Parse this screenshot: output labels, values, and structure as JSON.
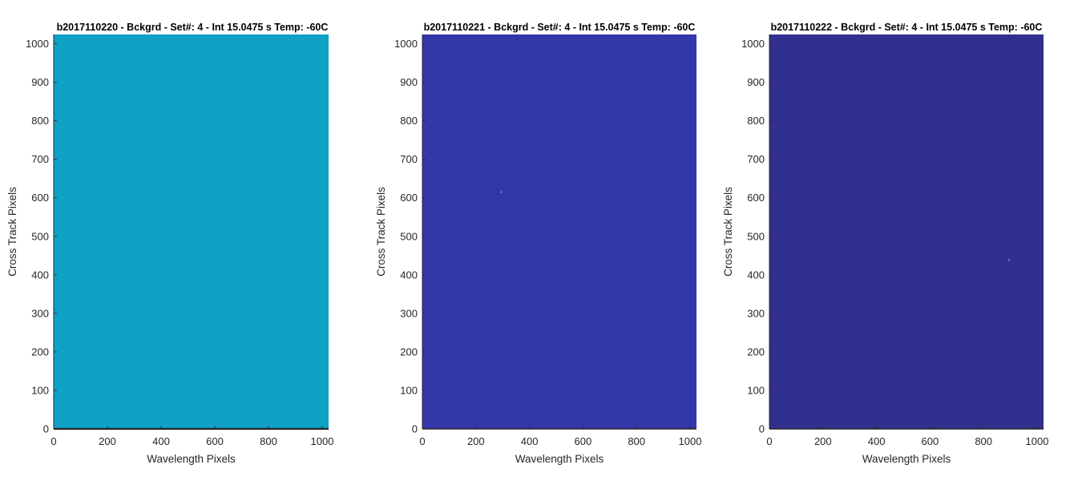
{
  "chart_data": [
    {
      "type": "heatmap",
      "title": "b2017110220 - Bckgrd - Set#: 4 - Int 15.0475 s Temp: -60C",
      "xlabel": "Wavelength Pixels",
      "ylabel": "Cross Track Pixels",
      "xlim": [
        0,
        1024
      ],
      "ylim": [
        0,
        1024
      ],
      "xticks": [
        0,
        200,
        400,
        600,
        800,
        1000
      ],
      "yticks": [
        0,
        100,
        200,
        300,
        400,
        500,
        600,
        700,
        800,
        900,
        1000
      ],
      "fill_color": "#0fa1c6",
      "grid": false
    },
    {
      "type": "heatmap",
      "title": "b2017110221 - Bckgrd - Set#: 4 - Int 15.0475 s Temp: -60C",
      "xlabel": "Wavelength Pixels",
      "ylabel": "Cross Track Pixels",
      "xlim": [
        0,
        1024
      ],
      "ylim": [
        0,
        1024
      ],
      "xticks": [
        0,
        200,
        400,
        600,
        800,
        1000
      ],
      "yticks": [
        0,
        100,
        200,
        300,
        400,
        500,
        600,
        700,
        800,
        900,
        1000
      ],
      "fill_color": "#3337a9",
      "grid": false
    },
    {
      "type": "heatmap",
      "title": "b2017110222 - Bckgrd - Set#: 4 - Int 15.0475 s Temp: -60C",
      "xlabel": "Wavelength Pixels",
      "ylabel": "Cross Track Pixels",
      "xlim": [
        0,
        1024
      ],
      "ylim": [
        0,
        1024
      ],
      "xticks": [
        0,
        200,
        400,
        600,
        800,
        1000
      ],
      "yticks": [
        0,
        100,
        200,
        300,
        400,
        500,
        600,
        700,
        800,
        900,
        1000
      ],
      "fill_color": "#32308e",
      "grid": false
    }
  ]
}
